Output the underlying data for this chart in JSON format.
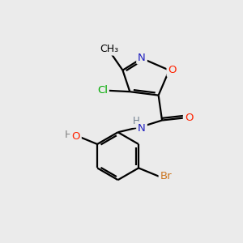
{
  "bg_color": "#ebebeb",
  "bond_color": "#000000",
  "bond_width": 1.6,
  "atom_colors": {
    "N": "#2020c0",
    "O": "#ff2200",
    "O_hydroxy": "#808080",
    "Cl": "#00aa00",
    "Br": "#cc7722",
    "C": "#000000",
    "H": "#708090"
  },
  "font_size": 9.5,
  "fig_size": [
    3.0,
    3.0
  ],
  "dpi": 100
}
